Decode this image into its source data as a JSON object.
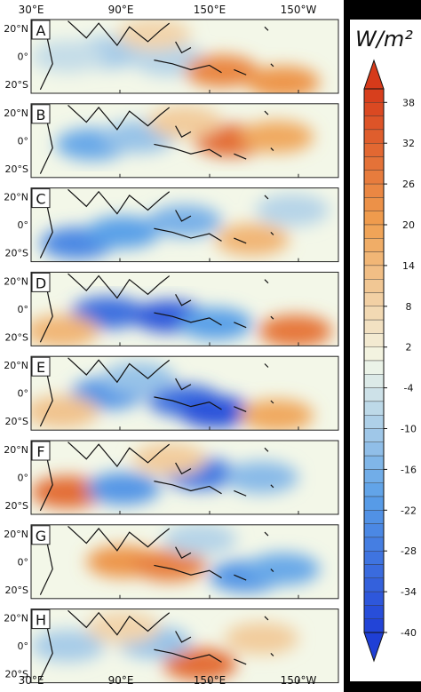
{
  "chart_data": {
    "type": "heatmap",
    "panels": [
      "A",
      "B",
      "C",
      "D",
      "E",
      "F",
      "G",
      "H"
    ],
    "x_ticks": [
      "30°E",
      "90°E",
      "150°E",
      "150°W"
    ],
    "y_ticks": [
      "20°N",
      "0°",
      "20°S"
    ],
    "colorbar": {
      "unit_label": "W/m²",
      "tick_labels": [
        "38",
        "32",
        "26",
        "20",
        "14",
        "8",
        "2",
        "-4",
        "-10",
        "-16",
        "-22",
        "-28",
        "-34",
        "-40"
      ],
      "ticks": [
        38,
        32,
        26,
        20,
        14,
        8,
        2,
        -4,
        -10,
        -16,
        -22,
        -28,
        -34,
        -40
      ],
      "range": [
        -40,
        40
      ],
      "extend": "both",
      "colors": {
        "neg_max": "#1f3fd6",
        "neg": "#5aa0e8",
        "neutral": "#f3f7e8",
        "pos": "#f0a050",
        "pos_max": "#d63a1a"
      }
    },
    "panel_patterns": [
      [
        [
          0.25,
          0.45,
          -10
        ],
        [
          0.45,
          0.55,
          -8
        ],
        [
          0.62,
          0.7,
          25
        ],
        [
          0.82,
          0.85,
          22
        ],
        [
          0.4,
          0.2,
          8
        ],
        [
          0.12,
          0.5,
          -6
        ]
      ],
      [
        [
          0.2,
          0.55,
          -18
        ],
        [
          0.35,
          0.45,
          -12
        ],
        [
          0.65,
          0.5,
          30
        ],
        [
          0.8,
          0.45,
          18
        ],
        [
          0.5,
          0.25,
          10
        ]
      ],
      [
        [
          0.15,
          0.75,
          -25
        ],
        [
          0.3,
          0.6,
          -20
        ],
        [
          0.5,
          0.45,
          -16
        ],
        [
          0.72,
          0.7,
          15
        ],
        [
          0.85,
          0.3,
          -8
        ]
      ],
      [
        [
          0.25,
          0.55,
          -30
        ],
        [
          0.45,
          0.6,
          -34
        ],
        [
          0.6,
          0.7,
          -20
        ],
        [
          0.86,
          0.8,
          28
        ],
        [
          0.1,
          0.8,
          15
        ]
      ],
      [
        [
          0.25,
          0.5,
          -22
        ],
        [
          0.5,
          0.6,
          -30
        ],
        [
          0.6,
          0.75,
          -36
        ],
        [
          0.35,
          0.3,
          -12
        ],
        [
          0.8,
          0.8,
          18
        ],
        [
          0.1,
          0.75,
          12
        ]
      ],
      [
        [
          0.12,
          0.7,
          30
        ],
        [
          0.3,
          0.65,
          -22
        ],
        [
          0.55,
          0.45,
          -28
        ],
        [
          0.75,
          0.5,
          -14
        ],
        [
          0.45,
          0.25,
          10
        ]
      ],
      [
        [
          0.3,
          0.5,
          22
        ],
        [
          0.45,
          0.55,
          26
        ],
        [
          0.7,
          0.7,
          -22
        ],
        [
          0.82,
          0.6,
          -18
        ],
        [
          0.55,
          0.2,
          -8
        ]
      ],
      [
        [
          0.12,
          0.5,
          -10
        ],
        [
          0.55,
          0.75,
          30
        ],
        [
          0.4,
          0.45,
          -12
        ],
        [
          0.75,
          0.4,
          10
        ],
        [
          0.3,
          0.25,
          8
        ]
      ]
    ]
  }
}
